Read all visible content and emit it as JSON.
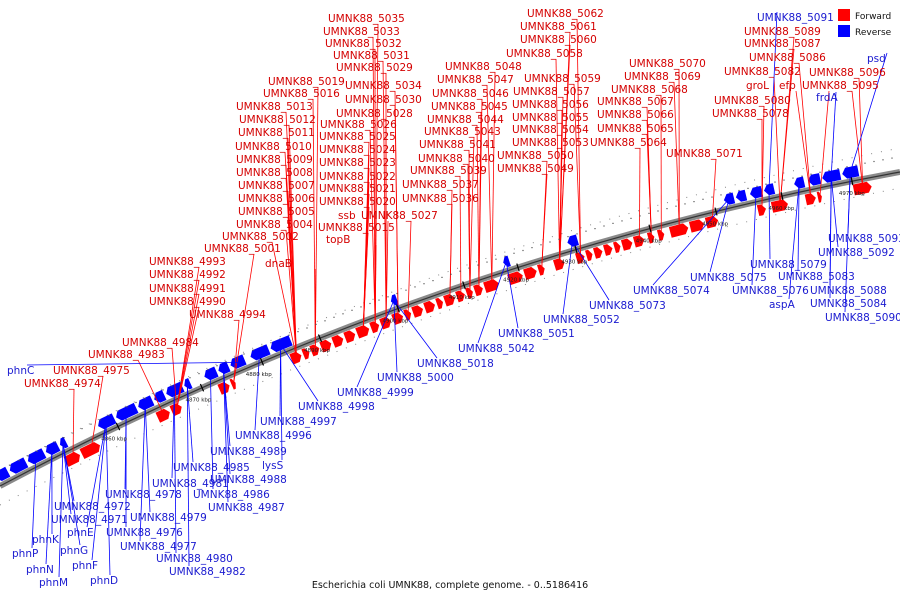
{
  "caption": "Escherichia coli UMNK88, complete genome. - 0..5186416",
  "legend": {
    "forward_label": "Forward",
    "reverse_label": "Reverse",
    "forward_color": "#ff0000",
    "reverse_color": "#0000ff"
  },
  "kbp_ticks": [
    "4860 kbp",
    "4870 kbp",
    "4880 kbp",
    "4890 kbp",
    "4900 kbp",
    "4910 kbp",
    "4920 kbp",
    "4930 kbp",
    "4940 kbp",
    "4950 kbp",
    "4960 kbp",
    "4970 kbp"
  ],
  "forward_labels": [
    "UMNK88_5035",
    "UMNK88_5033",
    "UMNK88_5032",
    "UMNK88_5031",
    "UMNK88_5029",
    "UMNK88_5019",
    "UMNK88_5034",
    "UMNK88_5016",
    "UMNK88_5030",
    "UMNK88_5013",
    "UMNK88_5028",
    "UMNK88_5012",
    "UMNK88_5026",
    "UMNK88_5011",
    "UMNK88_5025",
    "UMNK88_5010",
    "UMNK88_5024",
    "UMNK88_5009",
    "UMNK88_5023",
    "UMNK88_5008",
    "UMNK88_5022",
    "UMNK88_5007",
    "UMNK88_5021",
    "UMNK88_5006",
    "UMNK88_5020",
    "UMNK88_5005",
    "ssb",
    "UMNK88_5027",
    "UMNK88_5004",
    "UMNK88_5015",
    "UMNK88_5002",
    "topB",
    "UMNK88_5001",
    "dnaB",
    "UMNK88_4993",
    "UMNK88_4992",
    "UMNK88_4991",
    "UMNK88_4990",
    "UMNK88_4994",
    "UMNK88_4984",
    "UMNK88_4983",
    "UMNK88_4975",
    "UMNK88_4974",
    "UMNK88_5062",
    "UMNK88_5061",
    "UMNK88_5060",
    "UMNK88_5058",
    "UMNK88_5048",
    "UMNK88_5047",
    "UMNK88_5059",
    "UMNK88_5046",
    "UMNK88_5057",
    "UMNK88_5045",
    "UMNK88_5056",
    "UMNK88_5044",
    "UMNK88_5055",
    "UMNK88_5043",
    "UMNK88_5054",
    "UMNK88_5041",
    "UMNK88_5053",
    "UMNK88_5040",
    "UMNK88_5050",
    "UMNK88_5039",
    "UMNK88_5049",
    "UMNK88_5037",
    "UMNK88_5036",
    "UMNK88_5070",
    "UMNK88_5069",
    "UMNK88_5068",
    "UMNK88_5067",
    "UMNK88_5066",
    "UMNK88_5065",
    "UMNK88_5064",
    "UMNK88_5071",
    "UMNK88_5089",
    "UMNK88_5087",
    "UMNK88_5086",
    "UMNK88_5082",
    "UMNK88_5096",
    "groL",
    "efp",
    "UMNK88_5095",
    "UMNK88_5080",
    "UMNK88_5078"
  ],
  "reverse_labels": [
    "UMNK88_5091",
    "psd",
    "frdA",
    "phnC",
    "UMNK88_5018",
    "UMNK88_5000",
    "UMNK88_4999",
    "UMNK88_4998",
    "UMNK88_4997",
    "UMNK88_4996",
    "UMNK88_4989",
    "lysS",
    "UMNK88_4985",
    "UMNK88_4988",
    "UMNK88_4981",
    "UMNK88_4986",
    "UMNK88_4978",
    "UMNK88_4987",
    "UMNK88_4972",
    "UMNK88_4979",
    "UMNK88_4971",
    "UMNK88_4976",
    "phnE",
    "phnK",
    "UMNK88_4977",
    "phnG",
    "phnP",
    "UMNK88_4980",
    "phnF",
    "phnN",
    "UMNK88_4982",
    "phnM",
    "phnD",
    "UMNK88_5042",
    "UMNK88_5051",
    "UMNK88_5052",
    "UMNK88_5073",
    "UMNK88_5074",
    "UMNK88_5075",
    "UMNK88_5076",
    "aspA",
    "UMNK88_5079",
    "UMNK88_5083",
    "UMNK88_5088",
    "UMNK88_5084",
    "UMNK88_5090",
    "UMNK88_5093",
    "UMNK88_5092"
  ]
}
